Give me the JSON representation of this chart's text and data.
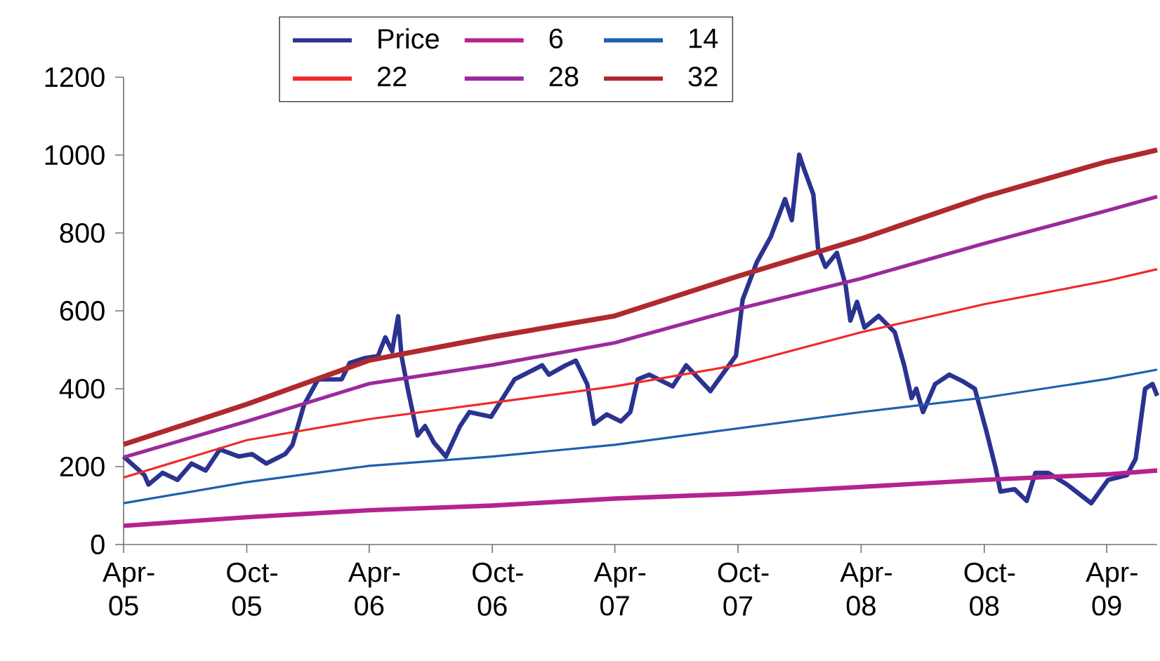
{
  "chart_data": {
    "type": "line",
    "xlim": [
      "2005-04-01",
      "2009-06-15"
    ],
    "xticks": [
      {
        "value": "2005-04-01",
        "label": "Apr-05"
      },
      {
        "value": "2005-10-01",
        "label": "Oct-05"
      },
      {
        "value": "2006-04-01",
        "label": "Apr-06"
      },
      {
        "value": "2006-10-01",
        "label": "Oct-06"
      },
      {
        "value": "2007-04-01",
        "label": "Apr-07"
      },
      {
        "value": "2007-10-01",
        "label": "Oct-07"
      },
      {
        "value": "2008-04-01",
        "label": "Apr-08"
      },
      {
        "value": "2008-10-01",
        "label": "Oct-08"
      },
      {
        "value": "2009-04-01",
        "label": "Apr-09"
      }
    ],
    "ylim": [
      0,
      1200
    ],
    "yticks": [
      0,
      200,
      400,
      600,
      800,
      1000,
      1200
    ],
    "grid": false,
    "legend": "top",
    "series": [
      {
        "name": "Price",
        "color": "#2b3390",
        "x": [
          "2005-04-01",
          "2005-05-02",
          "2005-05-08",
          "2005-05-29",
          "2005-06-20",
          "2005-07-11",
          "2005-08-01",
          "2005-08-22",
          "2005-09-19",
          "2005-10-09",
          "2005-10-30",
          "2005-11-27",
          "2005-12-08",
          "2005-12-25",
          "2006-01-15",
          "2006-02-19",
          "2006-03-03",
          "2006-03-24",
          "2006-04-14",
          "2006-04-25",
          "2006-05-05",
          "2006-05-14",
          "2006-05-19",
          "2006-05-29",
          "2006-06-12",
          "2006-06-23",
          "2006-07-06",
          "2006-07-24",
          "2006-08-14",
          "2006-08-28",
          "2006-09-29",
          "2006-11-03",
          "2006-12-14",
          "2006-12-24",
          "2007-01-18",
          "2007-02-02",
          "2007-02-19",
          "2007-03-01",
          "2007-03-20",
          "2007-04-10",
          "2007-04-24",
          "2007-05-05",
          "2007-05-22",
          "2007-06-26",
          "2007-07-16",
          "2007-08-21",
          "2007-09-28",
          "2007-10-08",
          "2007-10-29",
          "2007-11-19",
          "2007-12-10",
          "2007-12-20",
          "2007-12-31",
          "2008-01-07",
          "2008-01-21",
          "2008-01-28",
          "2008-02-08",
          "2008-02-25",
          "2008-03-09",
          "2008-03-16",
          "2008-03-26",
          "2008-04-06",
          "2008-04-27",
          "2008-05-21",
          "2008-06-04",
          "2008-06-15",
          "2008-06-22",
          "2008-07-02",
          "2008-07-20",
          "2008-08-10",
          "2008-08-31",
          "2008-09-17",
          "2008-10-04",
          "2008-10-18",
          "2008-10-25",
          "2008-11-15",
          "2008-12-03",
          "2008-12-16",
          "2009-01-04",
          "2009-02-01",
          "2009-03-09",
          "2009-04-03",
          "2009-05-01",
          "2009-05-14",
          "2009-05-28",
          "2009-06-08",
          "2009-06-15"
        ],
        "values": [
          226,
          178,
          154,
          184,
          166,
          208,
          190,
          244,
          226,
          232,
          208,
          232,
          256,
          358,
          424,
          424,
          466,
          478,
          484,
          532,
          496,
          586,
          484,
          394,
          280,
          304,
          262,
          226,
          304,
          340,
          328,
          424,
          460,
          436,
          460,
          472,
          412,
          310,
          334,
          316,
          340,
          424,
          436,
          406,
          460,
          394,
          485,
          629,
          725,
          791,
          887,
          833,
          1001,
          965,
          899,
          761,
          713,
          749,
          665,
          575,
          623,
          557,
          587,
          545,
          460,
          376,
          400,
          340,
          412,
          436,
          418,
          400,
          292,
          196,
          136,
          142,
          112,
          184,
          184,
          154,
          106,
          166,
          178,
          220,
          400,
          412,
          382
        ]
      },
      {
        "name": "6",
        "color": "#b5238f",
        "x": [
          "2005-04-01",
          "2005-10-01",
          "2006-04-01",
          "2006-10-01",
          "2007-04-01",
          "2007-10-01",
          "2008-04-01",
          "2008-10-01",
          "2009-04-01",
          "2009-06-15"
        ],
        "values": [
          48,
          70,
          88,
          100,
          118,
          130,
          148,
          166,
          180,
          190
        ]
      },
      {
        "name": "14",
        "color": "#1f5fb0",
        "x": [
          "2005-04-01",
          "2005-10-01",
          "2006-04-01",
          "2006-10-01",
          "2007-04-01",
          "2007-10-01",
          "2008-04-01",
          "2008-10-01",
          "2009-04-01",
          "2009-06-15"
        ],
        "values": [
          106,
          160,
          202,
          226,
          256,
          298,
          340,
          377,
          425,
          449
        ]
      },
      {
        "name": "22",
        "color": "#f02a2a",
        "x": [
          "2005-04-01",
          "2005-10-01",
          "2006-04-01",
          "2006-10-01",
          "2007-04-01",
          "2007-10-01",
          "2008-04-01",
          "2008-10-01",
          "2009-04-01",
          "2009-06-15"
        ],
        "values": [
          172,
          268,
          322,
          364,
          406,
          461,
          545,
          617,
          677,
          707
        ]
      },
      {
        "name": "28",
        "color": "#9b2a9b",
        "x": [
          "2005-04-01",
          "2005-10-01",
          "2006-04-01",
          "2006-10-01",
          "2007-04-01",
          "2007-10-01",
          "2008-04-01",
          "2008-10-01",
          "2009-04-01",
          "2009-06-15"
        ],
        "values": [
          224,
          316,
          413,
          461,
          518,
          605,
          683,
          773,
          857,
          893
        ]
      },
      {
        "name": "32",
        "color": "#b0292e",
        "x": [
          "2005-04-01",
          "2005-10-01",
          "2006-04-01",
          "2006-10-01",
          "2007-04-01",
          "2007-10-01",
          "2008-04-01",
          "2008-10-01",
          "2009-04-01",
          "2009-06-15"
        ],
        "values": [
          257,
          360,
          473,
          533,
          587,
          689,
          785,
          893,
          983,
          1013
        ]
      }
    ]
  }
}
